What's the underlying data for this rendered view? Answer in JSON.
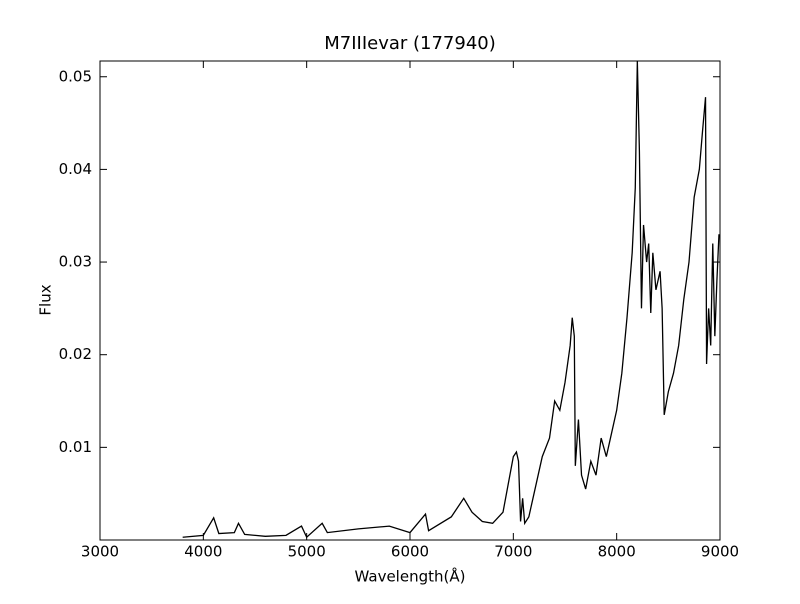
{
  "chart_data": {
    "type": "line",
    "title": "M7IIIevar (177940)",
    "xlabel": "Wavelength(Å)",
    "ylabel": "Flux",
    "x": [
      3800,
      4000,
      4100,
      4150,
      4300,
      4340,
      4400,
      4600,
      4800,
      4950,
      5000,
      5150,
      5200,
      5500,
      5800,
      6000,
      6150,
      6180,
      6400,
      6520,
      6600,
      6700,
      6800,
      6900,
      6950,
      7000,
      7030,
      7050,
      7070,
      7090,
      7110,
      7150,
      7200,
      7280,
      7350,
      7400,
      7450,
      7500,
      7550,
      7570,
      7590,
      7600,
      7630,
      7660,
      7700,
      7750,
      7800,
      7850,
      7900,
      7950,
      8000,
      8050,
      8100,
      8150,
      8180,
      8200,
      8220,
      8240,
      8260,
      8290,
      8310,
      8330,
      8350,
      8380,
      8420,
      8440,
      8460,
      8500,
      8550,
      8600,
      8650,
      8700,
      8750,
      8800,
      8830,
      8860,
      8870,
      8890,
      8910,
      8930,
      8950,
      8970,
      8990
    ],
    "values": [
      0.0003,
      0.0005,
      0.0024,
      0.0007,
      0.0008,
      0.0018,
      0.0006,
      0.0004,
      0.0005,
      0.0015,
      0.0003,
      0.0018,
      0.0008,
      0.0012,
      0.0015,
      0.0008,
      0.0028,
      0.001,
      0.0025,
      0.0045,
      0.003,
      0.002,
      0.0018,
      0.003,
      0.006,
      0.009,
      0.0095,
      0.0085,
      0.002,
      0.0045,
      0.0018,
      0.0025,
      0.005,
      0.009,
      0.011,
      0.015,
      0.014,
      0.017,
      0.021,
      0.024,
      0.022,
      0.008,
      0.013,
      0.007,
      0.0055,
      0.0085,
      0.007,
      0.011,
      0.009,
      0.0115,
      0.014,
      0.018,
      0.024,
      0.031,
      0.038,
      0.0517,
      0.042,
      0.025,
      0.034,
      0.03,
      0.032,
      0.0245,
      0.031,
      0.027,
      0.029,
      0.025,
      0.0135,
      0.016,
      0.018,
      0.021,
      0.026,
      0.03,
      0.037,
      0.04,
      0.044,
      0.0478,
      0.019,
      0.025,
      0.021,
      0.032,
      0.022,
      0.028,
      0.033
    ],
    "color": "#000000",
    "xlim": [
      3000,
      9000
    ],
    "xticks": [
      3000,
      4000,
      5000,
      6000,
      7000,
      8000,
      9000
    ],
    "ylim": [
      0,
      0.0517
    ],
    "yticks": [
      0.01,
      0.02,
      0.03,
      0.04,
      0.05
    ]
  }
}
